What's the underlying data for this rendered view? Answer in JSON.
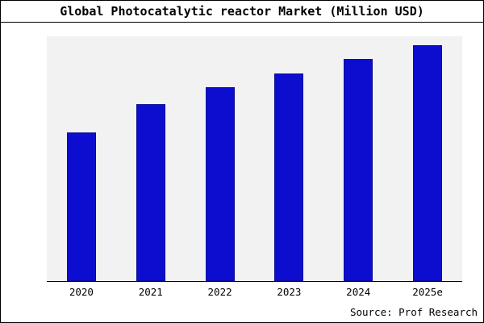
{
  "header": {
    "title": "Global Photocatalytic reactor Market (Million USD)"
  },
  "footer": {
    "source": "Source: Prof Research"
  },
  "chart_data": {
    "type": "bar",
    "title": "Global Photocatalytic reactor Market (Million USD)",
    "categories": [
      "2020",
      "2021",
      "2022",
      "2023",
      "2024",
      "2025e"
    ],
    "values": [
      63,
      75,
      82,
      88,
      94,
      100
    ],
    "xlabel": "",
    "ylabel": "",
    "ylim": [
      0,
      104
    ],
    "grid": false,
    "legend_position": "none",
    "bar_color": "#0d0dd0",
    "plot_background": "#f2f2f2",
    "axis_color": "#000000",
    "note": "No y-axis tick labels shown; values are relative estimates with tallest bar (2025e) = 100"
  }
}
